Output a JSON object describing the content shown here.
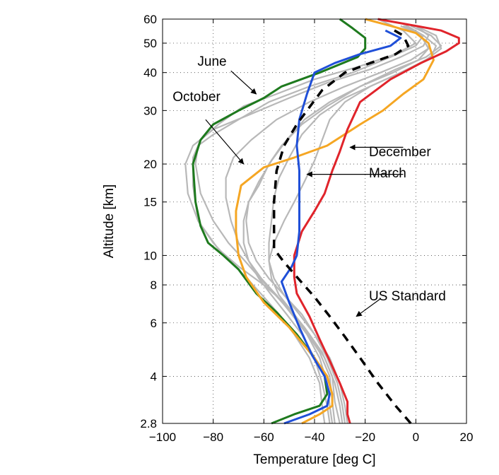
{
  "chart_data": {
    "type": "line",
    "xlabel": "Temperature [deg C]",
    "ylabel": "Altitude [km]",
    "xlim": [
      -100,
      20
    ],
    "ylim": [
      2.8,
      60
    ],
    "y_scale": "log",
    "grid": true,
    "x_ticks": [
      -100,
      -80,
      -60,
      -40,
      -20,
      0,
      20
    ],
    "y_ticks": [
      2.8,
      4,
      6,
      8,
      10,
      15,
      20,
      30,
      40,
      50,
      60
    ],
    "y_tick_labels": [
      "2.8",
      "4",
      "6",
      "8",
      "10",
      "15",
      "20",
      "30",
      "40",
      "50",
      "60"
    ],
    "colors": {
      "june": "#1e7a1e",
      "october": "#f5a623",
      "december": "#e0242b",
      "march": "#1f4fd8",
      "us_standard": "#000000",
      "other_months": "#b8b8b8"
    },
    "series": [
      {
        "name": "June",
        "color": "#1e7a1e",
        "x": [
          -57,
          -48,
          -38,
          -35,
          -36,
          -40,
          -47,
          -55,
          -63,
          -70,
          -76,
          -82,
          -85,
          -87,
          -88,
          -85,
          -80,
          -70,
          -60,
          -53,
          -38,
          -23,
          -20,
          -20,
          -25,
          -30
        ],
        "y": [
          2.8,
          3.0,
          3.2,
          3.5,
          4.0,
          4.6,
          5.5,
          6.5,
          7.5,
          9.0,
          10.0,
          11.0,
          12.5,
          15.0,
          20.0,
          24.0,
          27.0,
          30.0,
          33.0,
          36.0,
          40.0,
          45.0,
          48.0,
          52.0,
          56.0,
          60.0
        ]
      },
      {
        "name": "October",
        "color": "#f5a623",
        "x": [
          -45,
          -38,
          -33,
          -33,
          -35,
          -40,
          -50,
          -60,
          -67,
          -70,
          -71,
          -71,
          -69,
          -60,
          -48,
          -35,
          -22,
          -13,
          -5,
          3,
          7,
          5,
          0,
          -10,
          -20
        ],
        "y": [
          2.8,
          3.0,
          3.2,
          3.5,
          4.0,
          4.6,
          5.8,
          7.0,
          8.5,
          10.0,
          12.0,
          14.0,
          17.0,
          19.5,
          21.0,
          23.0,
          27.0,
          30.0,
          34.0,
          38.0,
          44.0,
          50.0,
          54.0,
          57.0,
          60.0
        ]
      },
      {
        "name": "December",
        "color": "#e0242b",
        "x": [
          -26,
          -27,
          -27,
          -30,
          -34,
          -38,
          -42,
          -47,
          -48,
          -48,
          -45,
          -40,
          -36,
          -33,
          -30,
          -27,
          -22,
          -10,
          2,
          12,
          17,
          17,
          10,
          0,
          -15
        ],
        "y": [
          2.8,
          3.0,
          3.3,
          3.8,
          4.5,
          5.3,
          6.3,
          7.5,
          8.5,
          10.0,
          12.0,
          14.0,
          16.0,
          19.0,
          22.0,
          26.0,
          32.0,
          38.0,
          43.0,
          47.0,
          50.0,
          52.0,
          55.0,
          57.0,
          60.0
        ]
      },
      {
        "name": "March",
        "color": "#1f4fd8",
        "x": [
          -52,
          -42,
          -35,
          -34,
          -36,
          -41,
          -46,
          -50,
          -53,
          -49,
          -47,
          -46,
          -46,
          -46,
          -47,
          -46,
          -43,
          -40,
          -32,
          -22,
          -10,
          -6,
          -12
        ],
        "y": [
          2.8,
          3.0,
          3.2,
          3.5,
          4.0,
          4.7,
          5.8,
          7.0,
          8.2,
          9.2,
          10.0,
          12.0,
          15.0,
          19.0,
          23.0,
          28.0,
          34.0,
          40.0,
          43.0,
          46.0,
          49.0,
          52.0,
          55.0
        ]
      },
      {
        "name": "US Standard",
        "color": "#000000",
        "x": [
          -2,
          -8,
          -15,
          -22,
          -28,
          -34,
          -40,
          -47,
          -52,
          -56,
          -56,
          -56,
          -55,
          -52,
          -47,
          -43,
          -37,
          -28,
          -18,
          -8,
          -3,
          -5,
          -10
        ],
        "y": [
          2.8,
          3.2,
          3.8,
          4.6,
          5.4,
          6.3,
          7.3,
          8.5,
          9.5,
          10.5,
          12.0,
          15.0,
          19.0,
          23.0,
          27.0,
          30.0,
          35.0,
          40.0,
          43.0,
          46.0,
          49.0,
          53.0,
          56.0
        ]
      }
    ],
    "background_series": [
      {
        "x": [
          -30,
          -32,
          -33,
          -37,
          -44,
          -52,
          -60,
          -70,
          -78,
          -86,
          -88,
          -88,
          -85,
          -78,
          -68,
          -55,
          -40,
          -22,
          -8,
          0,
          -5,
          -15
        ],
        "y": [
          2.8,
          3.3,
          4.0,
          4.8,
          5.8,
          7.0,
          8.0,
          9.2,
          10.5,
          13.0,
          17.0,
          21.0,
          24.0,
          27.0,
          31.0,
          34.0,
          38.0,
          42.0,
          46.0,
          50.0,
          55.0,
          60.0
        ]
      },
      {
        "x": [
          -32,
          -33,
          -34,
          -38,
          -44,
          -50,
          -56,
          -62,
          -68,
          -74,
          -80,
          -85,
          -87,
          -86,
          -80,
          -70,
          -58,
          -42,
          -25,
          -10,
          0,
          3,
          -5
        ],
        "y": [
          2.8,
          3.3,
          4.0,
          4.8,
          5.7,
          6.6,
          7.5,
          8.5,
          9.7,
          11.0,
          13.0,
          16.0,
          20.0,
          23.0,
          25.0,
          28.0,
          32.0,
          36.0,
          40.0,
          45.0,
          49.0,
          53.0,
          58.0
        ]
      },
      {
        "x": [
          -36,
          -37,
          -38,
          -42,
          -48,
          -54,
          -60,
          -66,
          -73,
          -80,
          -86,
          -90,
          -91,
          -88,
          -80,
          -66,
          -50,
          -35,
          -18,
          -6,
          3,
          5,
          0
        ],
        "y": [
          2.8,
          3.2,
          3.8,
          4.6,
          5.5,
          6.4,
          7.3,
          8.3,
          9.5,
          11.0,
          13.0,
          16.0,
          20.0,
          23.0,
          26.0,
          29.0,
          33.0,
          37.0,
          41.0,
          45.0,
          49.0,
          53.0,
          57.0
        ]
      },
      {
        "x": [
          -28,
          -29,
          -31,
          -35,
          -40,
          -45,
          -52,
          -58,
          -63,
          -66,
          -67,
          -66,
          -62,
          -58,
          -53,
          -45,
          -35,
          -22,
          -8,
          4,
          10,
          6,
          -2
        ],
        "y": [
          2.8,
          3.2,
          3.8,
          4.6,
          5.5,
          6.4,
          7.4,
          8.4,
          9.6,
          11.0,
          13.0,
          15.0,
          17.0,
          20.0,
          23.0,
          27.0,
          31.0,
          36.0,
          41.0,
          45.0,
          49.0,
          53.0,
          57.0
        ]
      },
      {
        "x": [
          -27,
          -28,
          -30,
          -34,
          -40,
          -46,
          -52,
          -56,
          -58,
          -58,
          -57,
          -56,
          -54,
          -50,
          -45,
          -38,
          -28,
          -15,
          -3,
          6,
          8,
          3,
          -5
        ],
        "y": [
          2.8,
          3.2,
          3.8,
          4.6,
          5.5,
          6.4,
          7.4,
          8.4,
          9.6,
          11.0,
          13.0,
          15.5,
          18.0,
          21.0,
          25.0,
          29.0,
          33.0,
          37.0,
          41.0,
          45.0,
          49.0,
          53.0,
          57.0
        ]
      },
      {
        "x": [
          -29,
          -30,
          -32,
          -36,
          -42,
          -48,
          -54,
          -57,
          -58,
          -56,
          -52,
          -48,
          -44,
          -40,
          -37,
          -34,
          -28,
          -18,
          -6,
          4,
          10,
          8,
          0
        ],
        "y": [
          2.8,
          3.2,
          3.8,
          4.6,
          5.5,
          6.4,
          7.4,
          8.4,
          9.6,
          11.0,
          13.0,
          15.0,
          17.5,
          20.5,
          24.0,
          28.0,
          32.0,
          36.0,
          40.0,
          44.0,
          48.0,
          53.0,
          57.0
        ]
      },
      {
        "x": [
          -33,
          -34,
          -35,
          -38,
          -43,
          -49,
          -55,
          -61,
          -66,
          -70,
          -73,
          -75,
          -75,
          -72,
          -65,
          -55,
          -42,
          -28,
          -14,
          -2,
          5,
          2,
          -6
        ],
        "y": [
          2.8,
          3.2,
          3.8,
          4.6,
          5.5,
          6.4,
          7.4,
          8.4,
          9.6,
          11.0,
          13.0,
          15.5,
          18.0,
          21.0,
          24.0,
          28.0,
          32.0,
          36.0,
          40.0,
          44.0,
          48.0,
          53.0,
          57.0
        ]
      },
      {
        "x": [
          -34,
          -35,
          -37,
          -40,
          -45,
          -51,
          -57,
          -62,
          -66,
          -68,
          -68,
          -66,
          -62,
          -57,
          -51,
          -44,
          -34,
          -22,
          -9,
          1,
          5,
          2,
          -4
        ],
        "y": [
          2.8,
          3.2,
          3.8,
          4.6,
          5.5,
          6.4,
          7.4,
          8.4,
          9.6,
          11.0,
          13.0,
          15.0,
          17.5,
          20.5,
          24.0,
          28.0,
          32.0,
          36.0,
          40.0,
          44.0,
          48.0,
          53.0,
          57.0
        ]
      }
    ],
    "annotations": [
      {
        "label": "June",
        "target_series": "June"
      },
      {
        "label": "October",
        "target_series": "October"
      },
      {
        "label": "December",
        "target_series": "December"
      },
      {
        "label": "March",
        "target_series": "March"
      },
      {
        "label": "US Standard",
        "target_series": "US Standard"
      }
    ]
  }
}
